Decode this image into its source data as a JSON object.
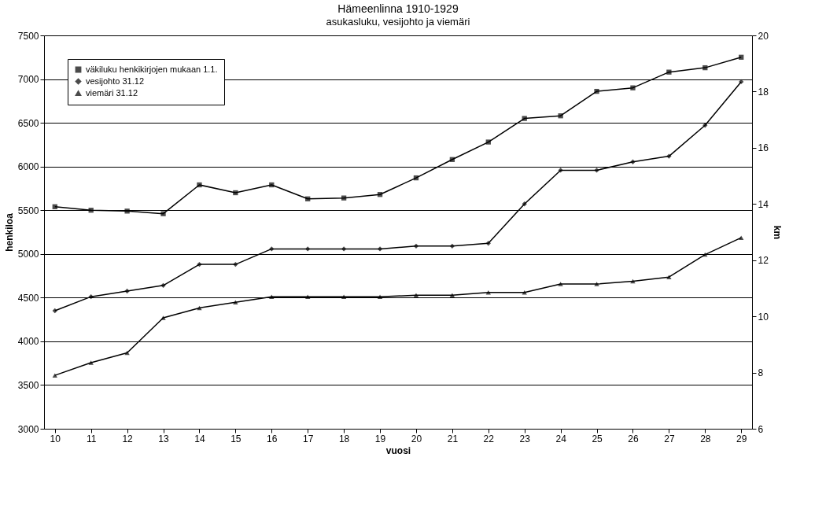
{
  "chart_data": {
    "type": "line",
    "title": "Hämeenlinna 1910-1929",
    "subtitle": "asukasluku, vesijohto ja viemäri",
    "xlabel": "vuosi",
    "ylabel": "henkiloa",
    "y2label": "km",
    "categories": [
      "10",
      "11",
      "12",
      "13",
      "14",
      "15",
      "16",
      "17",
      "18",
      "19",
      "20",
      "21",
      "22",
      "23",
      "24",
      "25",
      "26",
      "27",
      "28",
      "29"
    ],
    "series": [
      {
        "name": "väkiluku henkikirjojen mukaan 1.1.",
        "color": "#000000",
        "marker": "square",
        "values": [
          5540,
          5500,
          5490,
          5460,
          5790,
          5700,
          5790,
          5630,
          5640,
          5680,
          5870,
          6080,
          6280,
          6550,
          6580,
          6860,
          6900,
          7080,
          7130,
          7250
        ]
      },
      {
        "name": "vesijohto 31.12",
        "color": "#000000",
        "marker": "diamond",
        "axis": "y2",
        "values": [
          10.2,
          10.7,
          10.9,
          11.1,
          11.85,
          11.85,
          12.4,
          12.4,
          12.4,
          12.4,
          12.5,
          12.5,
          12.6,
          14.0,
          15.2,
          15.2,
          15.5,
          15.7,
          16.8,
          18.35
        ]
      },
      {
        "name": "viemäri 31.12",
        "color": "#000000",
        "marker": "triangle",
        "axis": "y2",
        "values": [
          7.9,
          8.35,
          8.7,
          9.95,
          10.3,
          10.5,
          10.7,
          10.7,
          10.7,
          10.7,
          10.75,
          10.75,
          10.85,
          10.85,
          11.15,
          11.15,
          11.25,
          11.4,
          12.2,
          12.8
        ]
      }
    ],
    "ylim": [
      3000,
      7500
    ],
    "yticks": [
      3000,
      3500,
      4000,
      4500,
      5000,
      5500,
      6000,
      6500,
      7000,
      7500
    ],
    "y2lim": [
      6,
      20
    ],
    "y2ticks": [
      6,
      8,
      10,
      12,
      14,
      16,
      18,
      20
    ],
    "grid": "y",
    "legend": "top left",
    "line_style": "solid"
  }
}
